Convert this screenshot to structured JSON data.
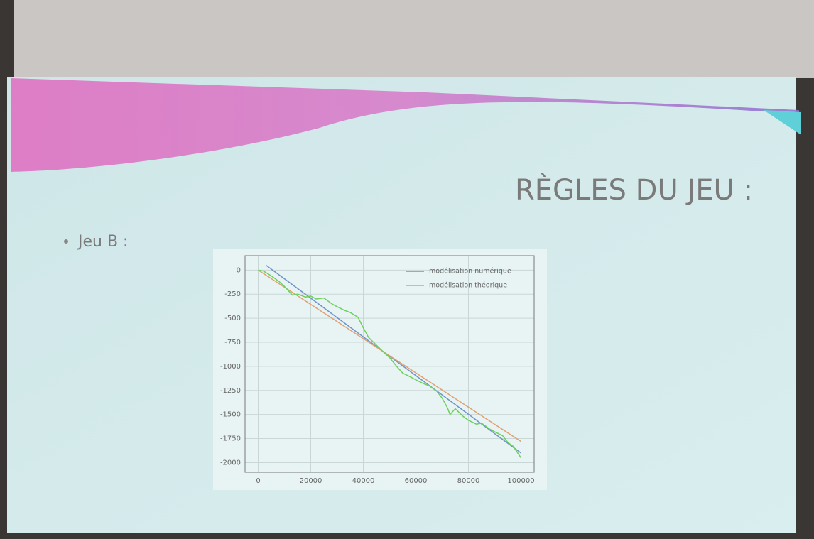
{
  "slide": {
    "title": "RÈGLES DU JEU :",
    "bullet": "Jeu B :"
  },
  "chart_data": {
    "type": "line",
    "xlim": [
      -5000,
      105000
    ],
    "xticks": [
      0,
      20000,
      40000,
      60000,
      80000,
      100000
    ],
    "ylim": [
      -2100,
      150
    ],
    "yticks": [
      0,
      -250,
      -500,
      -750,
      -1000,
      -1250,
      -1500,
      -1750,
      -2000
    ],
    "grid": true,
    "legend": "upper right",
    "series": [
      {
        "name": "modélisation numérique",
        "color": "#6f93c8",
        "x": [
          3000,
          100000
        ],
        "values": [
          50,
          -1900
        ]
      },
      {
        "name": "modélisation théorique",
        "color": "#e0a070",
        "x": [
          0,
          100000
        ],
        "values": [
          0,
          -1780
        ]
      },
      {
        "color": "#6fcf5f",
        "x": [
          0,
          2000,
          5000,
          8000,
          10000,
          13000,
          15000,
          18000,
          20000,
          22000,
          25000,
          28000,
          30000,
          33000,
          35000,
          38000,
          40000,
          42000,
          45000,
          48000,
          50000,
          53000,
          55000,
          58000,
          60000,
          63000,
          65000,
          68000,
          70000,
          72000,
          73000,
          75000,
          78000,
          80000,
          83000,
          85000,
          88000,
          90000,
          93000,
          95000,
          97000,
          100000
        ],
        "values": [
          0,
          -10,
          -60,
          -120,
          -170,
          -260,
          -250,
          -280,
          -270,
          -300,
          -290,
          -350,
          -380,
          -420,
          -440,
          -490,
          -600,
          -700,
          -780,
          -860,
          -910,
          -1010,
          -1070,
          -1110,
          -1140,
          -1180,
          -1200,
          -1260,
          -1330,
          -1430,
          -1500,
          -1440,
          -1520,
          -1560,
          -1600,
          -1590,
          -1650,
          -1680,
          -1720,
          -1790,
          -1830,
          -1950
        ]
      }
    ]
  }
}
